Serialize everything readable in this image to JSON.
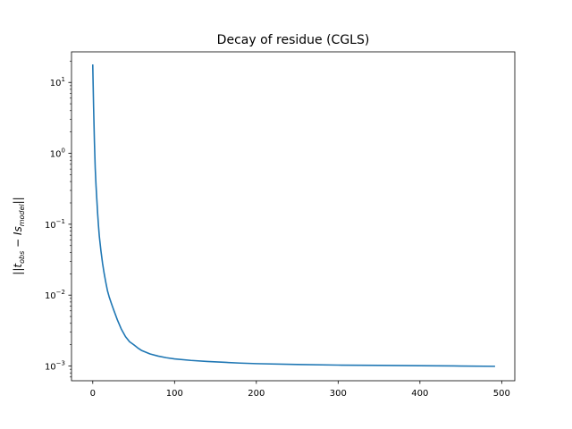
{
  "chart_data": {
    "type": "line",
    "title": "Decay of residue (CGLS)",
    "xlabel": "",
    "ylabel": "||t_obs − Is_model||",
    "ylabel_parts": {
      "open": "||",
      "t": "t",
      "t_sub": "obs",
      "minus": " − ",
      "is": "Is",
      "is_sub": "model",
      "close": "||"
    },
    "yscale": "log",
    "xlim": [
      -26,
      516
    ],
    "ylim": [
      0.00062,
      27
    ],
    "grid": false,
    "x_ticks": [
      0,
      100,
      200,
      300,
      400,
      500
    ],
    "y_ticks": [
      {
        "value": 0.001,
        "base": "10",
        "exp": "−3"
      },
      {
        "value": 0.01,
        "base": "10",
        "exp": "−2"
      },
      {
        "value": 0.1,
        "base": "10",
        "exp": "−1"
      },
      {
        "value": 1,
        "base": "10",
        "exp": "0"
      },
      {
        "value": 10,
        "base": "10",
        "exp": "1"
      }
    ],
    "series": [
      {
        "color": "#1f77b4",
        "points": [
          [
            0,
            17.5
          ],
          [
            1,
            4.5
          ],
          [
            2,
            1.5
          ],
          [
            3,
            0.62
          ],
          [
            4,
            0.35
          ],
          [
            5,
            0.22
          ],
          [
            6,
            0.14
          ],
          [
            7,
            0.095
          ],
          [
            8,
            0.068
          ],
          [
            10,
            0.042
          ],
          [
            12,
            0.028
          ],
          [
            14,
            0.02
          ],
          [
            16,
            0.015
          ],
          [
            18,
            0.0115
          ],
          [
            20,
            0.0095
          ],
          [
            23,
            0.0075
          ],
          [
            26,
            0.006
          ],
          [
            30,
            0.0045
          ],
          [
            35,
            0.0033
          ],
          [
            40,
            0.0026
          ],
          [
            45,
            0.0022
          ],
          [
            50,
            0.002
          ],
          [
            55,
            0.0018
          ],
          [
            60,
            0.00165
          ],
          [
            70,
            0.00148
          ],
          [
            80,
            0.00138
          ],
          [
            90,
            0.00131
          ],
          [
            100,
            0.00126
          ],
          [
            120,
            0.0012
          ],
          [
            140,
            0.00116
          ],
          [
            160,
            0.00113
          ],
          [
            180,
            0.0011
          ],
          [
            200,
            0.00108
          ],
          [
            250,
            0.00105
          ],
          [
            300,
            0.00103
          ],
          [
            350,
            0.00102
          ],
          [
            400,
            0.00101
          ],
          [
            450,
            0.001
          ],
          [
            491,
            0.00099
          ]
        ]
      }
    ]
  }
}
